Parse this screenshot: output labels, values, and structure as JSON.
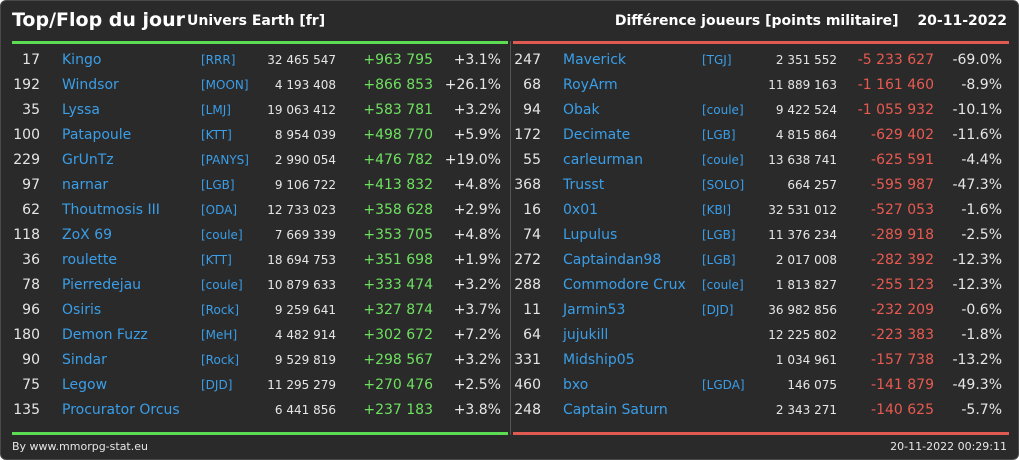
{
  "header": {
    "title": "Top/Flop du jour",
    "subtitle": "Univers Earth [fr]",
    "metric": "Différence joueurs [points militaire]",
    "date": "20-11-2022"
  },
  "top": [
    {
      "rank": "17",
      "name": "Kingo",
      "alliance": "[RRR]",
      "points": "32 465 547",
      "diff": "+963 795",
      "pct": "+3.1%"
    },
    {
      "rank": "192",
      "name": "Windsor",
      "alliance": "[MOON]",
      "points": "4 193 408",
      "diff": "+866 853",
      "pct": "+26.1%"
    },
    {
      "rank": "35",
      "name": "Lyssa",
      "alliance": "[LMJ]",
      "points": "19 063 412",
      "diff": "+583 781",
      "pct": "+3.2%"
    },
    {
      "rank": "100",
      "name": "Patapoule",
      "alliance": "[KTT]",
      "points": "8 954 039",
      "diff": "+498 770",
      "pct": "+5.9%"
    },
    {
      "rank": "229",
      "name": "GrUnTz",
      "alliance": "[PANYS]",
      "points": "2 990 054",
      "diff": "+476 782",
      "pct": "+19.0%"
    },
    {
      "rank": "97",
      "name": "narnar",
      "alliance": "[LGB]",
      "points": "9 106 722",
      "diff": "+413 832",
      "pct": "+4.8%"
    },
    {
      "rank": "62",
      "name": "Thoutmosis III",
      "alliance": "[ODA]",
      "points": "12 733 023",
      "diff": "+358 628",
      "pct": "+2.9%"
    },
    {
      "rank": "118",
      "name": "ZoX 69",
      "alliance": "[coule]",
      "points": "7 669 339",
      "diff": "+353 705",
      "pct": "+4.8%"
    },
    {
      "rank": "36",
      "name": "roulette",
      "alliance": "[KTT]",
      "points": "18 694 753",
      "diff": "+351 698",
      "pct": "+1.9%"
    },
    {
      "rank": "78",
      "name": "Pierredejau",
      "alliance": "[coule]",
      "points": "10 879 633",
      "diff": "+333 474",
      "pct": "+3.2%"
    },
    {
      "rank": "96",
      "name": "Osiris",
      "alliance": "[Rock]",
      "points": "9 259 641",
      "diff": "+327 874",
      "pct": "+3.7%"
    },
    {
      "rank": "180",
      "name": "Demon Fuzz",
      "alliance": "[MeH]",
      "points": "4 482 914",
      "diff": "+302 672",
      "pct": "+7.2%"
    },
    {
      "rank": "90",
      "name": "Sindar",
      "alliance": "[Rock]",
      "points": "9 529 819",
      "diff": "+298 567",
      "pct": "+3.2%"
    },
    {
      "rank": "75",
      "name": "Legow",
      "alliance": "[DJD]",
      "points": "11 295 279",
      "diff": "+270 476",
      "pct": "+2.5%"
    },
    {
      "rank": "135",
      "name": "Procurator Orcus",
      "alliance": "",
      "points": "6 441 856",
      "diff": "+237 183",
      "pct": "+3.8%"
    }
  ],
  "flop": [
    {
      "rank": "247",
      "name": "Maverick",
      "alliance": "[TGJ]",
      "points": "2 351 552",
      "diff": "-5 233 627",
      "pct": "-69.0%"
    },
    {
      "rank": "68",
      "name": "RoyArm",
      "alliance": "",
      "points": "11 889 163",
      "diff": "-1 161 460",
      "pct": "-8.9%"
    },
    {
      "rank": "94",
      "name": "Obak",
      "alliance": "[coule]",
      "points": "9 422 524",
      "diff": "-1 055 932",
      "pct": "-10.1%"
    },
    {
      "rank": "172",
      "name": "Decimate",
      "alliance": "[LGB]",
      "points": "4 815 864",
      "diff": "-629 402",
      "pct": "-11.6%"
    },
    {
      "rank": "55",
      "name": "carleurman",
      "alliance": "[coule]",
      "points": "13 638 741",
      "diff": "-625 591",
      "pct": "-4.4%"
    },
    {
      "rank": "368",
      "name": "Trusst",
      "alliance": "[SOLO]",
      "points": "664 257",
      "diff": "-595 987",
      "pct": "-47.3%"
    },
    {
      "rank": "16",
      "name": "0x01",
      "alliance": "[KBI]",
      "points": "32 531 012",
      "diff": "-527 053",
      "pct": "-1.6%"
    },
    {
      "rank": "74",
      "name": "Lupulus",
      "alliance": "[LGB]",
      "points": "11 376 234",
      "diff": "-289 918",
      "pct": "-2.5%"
    },
    {
      "rank": "272",
      "name": "Captaindan98",
      "alliance": "[LGB]",
      "points": "2 017 008",
      "diff": "-282 392",
      "pct": "-12.3%"
    },
    {
      "rank": "288",
      "name": "Commodore Crux",
      "alliance": "[coule]",
      "points": "1 813 827",
      "diff": "-255 123",
      "pct": "-12.3%"
    },
    {
      "rank": "11",
      "name": "Jarmin53",
      "alliance": "[DJD]",
      "points": "36 982 856",
      "diff": "-232 209",
      "pct": "-0.6%"
    },
    {
      "rank": "64",
      "name": "jujukill",
      "alliance": "",
      "points": "12 225 802",
      "diff": "-223 383",
      "pct": "-1.8%"
    },
    {
      "rank": "331",
      "name": "Midship05",
      "alliance": "",
      "points": "1 034 961",
      "diff": "-157 738",
      "pct": "-13.2%"
    },
    {
      "rank": "460",
      "name": "bxo",
      "alliance": "[LGDA]",
      "points": "146 075",
      "diff": "-141 879",
      "pct": "-49.3%"
    },
    {
      "rank": "248",
      "name": "Captain Saturn",
      "alliance": "",
      "points": "2 343 271",
      "diff": "-140 625",
      "pct": "-5.7%"
    }
  ],
  "footer": {
    "credit": "By www.mmorpg-stat.eu",
    "timestamp": "20-11-2022 00:29:11"
  },
  "colors": {
    "background": "#2a2a2a",
    "link": "#3a9ee8",
    "gain": "#6ee060",
    "loss": "#e85a50",
    "gain_rule": "#5cdc52",
    "loss_rule": "#e05a52"
  }
}
